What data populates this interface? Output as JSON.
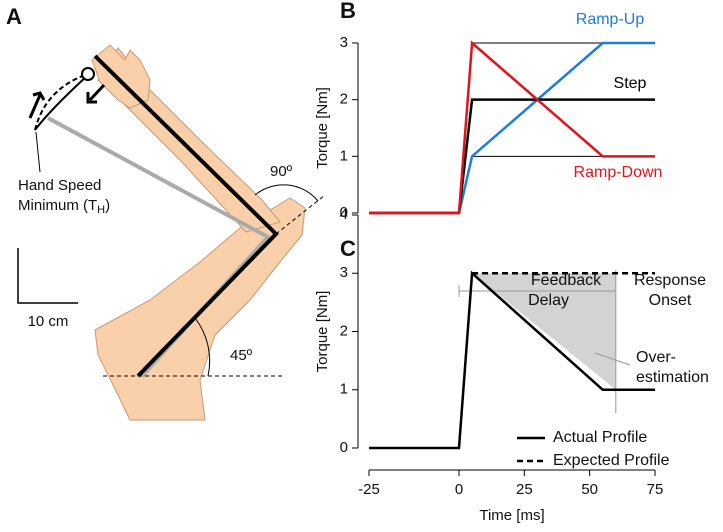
{
  "panel_a": {
    "label": "A",
    "hand_speed_line1": "Hand Speed",
    "hand_speed_line2": "Minimum (T",
    "hand_speed_sub": "H",
    "hand_speed_end": ")",
    "scale_label": "10 cm",
    "elbow_angle": "90º",
    "shoulder_angle": "45º"
  },
  "chart_data": [
    {
      "type": "line",
      "panel_label": "B",
      "ylabel": "Torque [Nm]",
      "xlim": [
        -25,
        75
      ],
      "ylim": [
        0,
        3
      ],
      "yticks": [
        0,
        1,
        2,
        3
      ],
      "series": [
        {
          "name": "Ramp-Up",
          "color": "#1f7ce0",
          "x": [
            -25,
            0,
            5,
            55,
            75
          ],
          "values": [
            0,
            0,
            1,
            3,
            3
          ]
        },
        {
          "name": "Step",
          "color": "#000000",
          "x": [
            -25,
            0,
            5,
            75
          ],
          "values": [
            0,
            0,
            2,
            2
          ]
        },
        {
          "name": "Ramp-Down",
          "color": "#e0141c",
          "x": [
            -25,
            0,
            5,
            55,
            75
          ],
          "values": [
            0,
            0,
            3,
            1,
            1
          ]
        }
      ]
    },
    {
      "type": "line",
      "panel_label": "C",
      "xlabel": "Time [ms]",
      "ylabel": "Torque [Nm]",
      "xlim": [
        -25,
        75
      ],
      "ylim": [
        0,
        4
      ],
      "xticks": [
        -25,
        0,
        25,
        50,
        75
      ],
      "yticks": [
        0,
        1,
        2,
        3,
        4
      ],
      "onset": 60,
      "annotations": {
        "delay_line1": "Feedback",
        "delay_line2": "Delay",
        "onset_line1": "Response",
        "onset_line2": "Onset",
        "over_line1": "Over-",
        "over_line2": "estimation"
      },
      "series": [
        {
          "name": "Actual Profile",
          "color": "#000000",
          "dash": false,
          "x": [
            -25,
            0,
            5,
            55,
            75
          ],
          "values": [
            0,
            0,
            3,
            1,
            1
          ]
        },
        {
          "name": "Expected Profile",
          "color": "#000000",
          "dash": true,
          "x": [
            5,
            75
          ],
          "values": [
            3,
            3
          ]
        }
      ]
    }
  ]
}
